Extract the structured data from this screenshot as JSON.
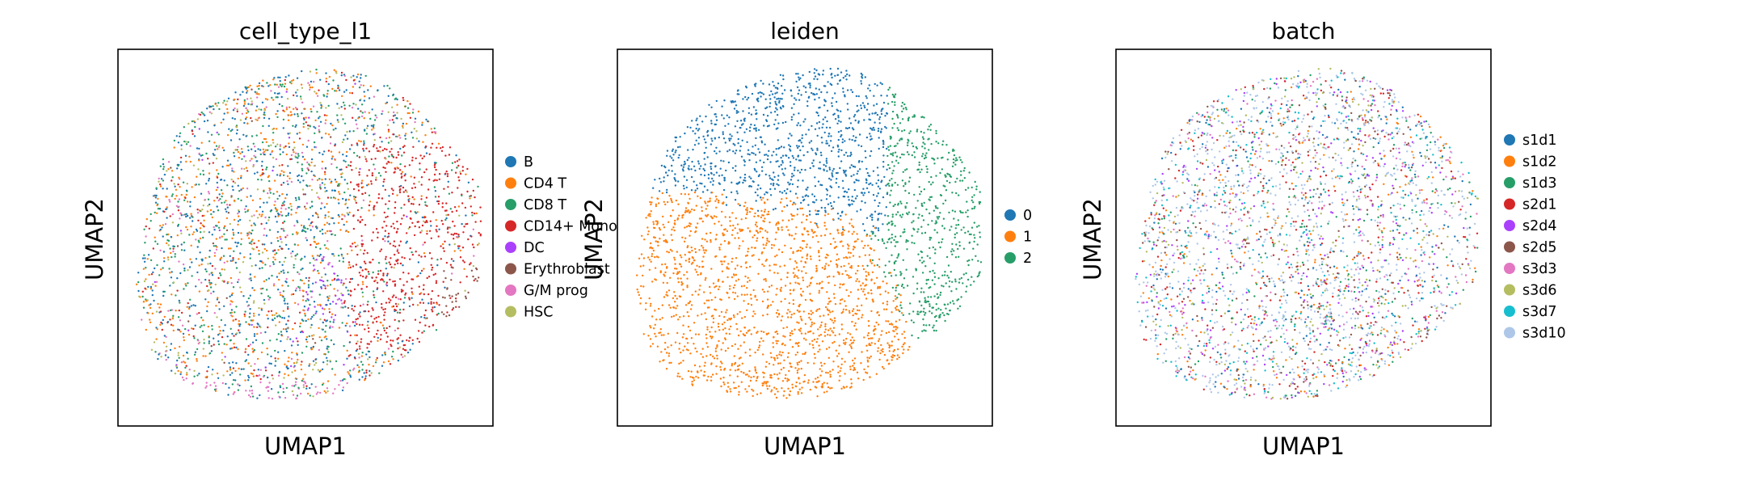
{
  "chart_data": [
    {
      "type": "scatter",
      "title": "cell_type_l1",
      "xlabel": "UMAP1",
      "ylabel": "UMAP2",
      "grid": false,
      "legend_placement": "right",
      "categories": [
        {
          "name": "B",
          "color": "#1f77b4"
        },
        {
          "name": "CD4 T",
          "color": "#ff7f0e"
        },
        {
          "name": "CD8 T",
          "color": "#279e68"
        },
        {
          "name": "CD14+ Mono",
          "color": "#d62728"
        },
        {
          "name": "DC",
          "color": "#aa40fc"
        },
        {
          "name": "Erythroblast",
          "color": "#8c564b"
        },
        {
          "name": "G/M prog",
          "color": "#e377c2"
        },
        {
          "name": "HSC",
          "color": "#b5bd61"
        }
      ]
    },
    {
      "type": "scatter",
      "title": "leiden",
      "xlabel": "UMAP1",
      "ylabel": "UMAP2",
      "grid": false,
      "legend_placement": "right",
      "categories": [
        {
          "name": "0",
          "color": "#1f77b4"
        },
        {
          "name": "1",
          "color": "#ff7f0e"
        },
        {
          "name": "2",
          "color": "#279e68"
        }
      ]
    },
    {
      "type": "scatter",
      "title": "batch",
      "xlabel": "UMAP1",
      "ylabel": "UMAP2",
      "grid": false,
      "legend_placement": "right",
      "categories": [
        {
          "name": "s1d1",
          "color": "#1f77b4"
        },
        {
          "name": "s1d2",
          "color": "#ff7f0e"
        },
        {
          "name": "s1d3",
          "color": "#279e68"
        },
        {
          "name": "s2d1",
          "color": "#d62728"
        },
        {
          "name": "s2d4",
          "color": "#aa40fc"
        },
        {
          "name": "s2d5",
          "color": "#8c564b"
        },
        {
          "name": "s3d3",
          "color": "#e377c2"
        },
        {
          "name": "s3d6",
          "color": "#b5bd61"
        },
        {
          "name": "s3d7",
          "color": "#17becf"
        },
        {
          "name": "s3d10",
          "color": "#aec7e8"
        }
      ]
    }
  ]
}
